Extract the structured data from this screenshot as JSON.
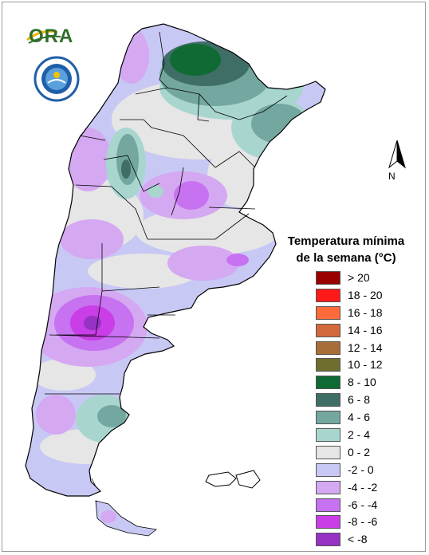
{
  "logos": {
    "ora_text": "ORA",
    "seal_name": "smn-seal"
  },
  "compass": {
    "label": "N"
  },
  "legend": {
    "title_line1": "Temperatura mínima",
    "title_line2": "de la semana (°C)",
    "classes": [
      {
        "label": "> 20",
        "color": "#990000"
      },
      {
        "label": "18 - 20",
        "color": "#ff1a1a"
      },
      {
        "label": "16 - 18",
        "color": "#ff6a3a"
      },
      {
        "label": "14 - 16",
        "color": "#d2693c"
      },
      {
        "label": "12 - 14",
        "color": "#a86e3a"
      },
      {
        "label": "10 - 12",
        "color": "#6e6e2e"
      },
      {
        "label": "8 - 10",
        "color": "#0f6b33"
      },
      {
        "label": "6 - 8",
        "color": "#3f6e66"
      },
      {
        "label": "4 - 6",
        "color": "#73a7a0"
      },
      {
        "label": "2 - 4",
        "color": "#a8d6cf"
      },
      {
        "label": "0 - 2",
        "color": "#e6e6e6"
      },
      {
        "label": "-2 - 0",
        "color": "#c8c8f5"
      },
      {
        "label": "-4 - -2",
        "color": "#d5a8f2"
      },
      {
        "label": "-6 - -4",
        "color": "#c772f0"
      },
      {
        "label": "-8 - -6",
        "color": "#c93ee6"
      },
      {
        "label": "< -8",
        "color": "#9632c4"
      }
    ]
  }
}
